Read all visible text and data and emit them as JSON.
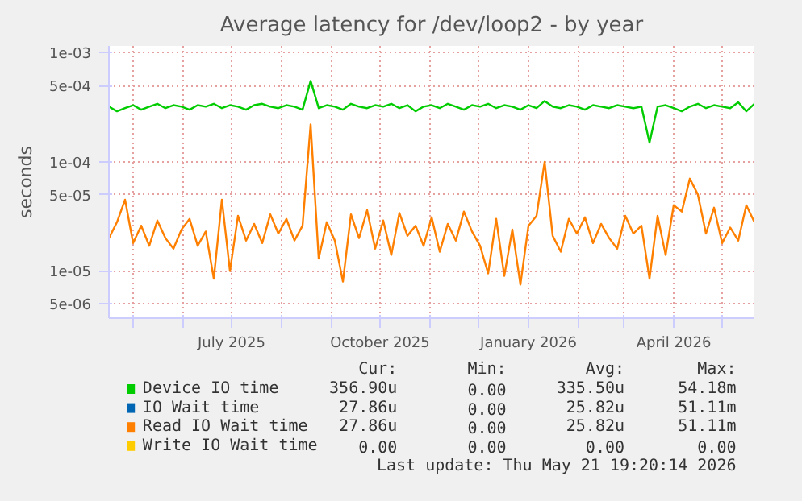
{
  "chart_data": {
    "type": "line",
    "title": "Average latency for /dev/loop2 - by year",
    "ylabel": "seconds",
    "log": true,
    "grid": true,
    "legend": "bottom",
    "ylim": [
      3.7e-06,
      0.00115
    ],
    "yticks": [
      {
        "value": 0.001,
        "label": "1e-03"
      },
      {
        "value": 0.0005,
        "label": "5e-04"
      },
      {
        "value": 0.0001,
        "label": "1e-04"
      },
      {
        "value": 5e-05,
        "label": "5e-05"
      },
      {
        "value": 1e-05,
        "label": "1e-05"
      },
      {
        "value": 5e-06,
        "label": "5e-06"
      }
    ],
    "xlim": [
      "2025-04-16",
      "2026-05-21"
    ],
    "xticks": [
      {
        "value": "2025-05-01",
        "label": null
      },
      {
        "value": "2025-06-01",
        "label": null
      },
      {
        "value": "2025-07-01",
        "label": "July 2025"
      },
      {
        "value": "2025-08-01",
        "label": null
      },
      {
        "value": "2025-09-01",
        "label": null
      },
      {
        "value": "2025-10-01",
        "label": "October 2025"
      },
      {
        "value": "2025-11-01",
        "label": null
      },
      {
        "value": "2025-12-01",
        "label": null
      },
      {
        "value": "2026-01-01",
        "label": "January 2026"
      },
      {
        "value": "2026-02-01",
        "label": null
      },
      {
        "value": "2026-03-01",
        "label": null
      },
      {
        "value": "2026-04-01",
        "label": "April 2026"
      },
      {
        "value": "2026-05-01",
        "label": null
      }
    ],
    "x": [
      "2025-04-16",
      "2025-04-21",
      "2025-04-26",
      "2025-05-01",
      "2025-05-06",
      "2025-05-11",
      "2025-05-16",
      "2025-05-21",
      "2025-05-26",
      "2025-05-31",
      "2025-06-05",
      "2025-06-10",
      "2025-06-15",
      "2025-06-20",
      "2025-06-25",
      "2025-06-30",
      "2025-07-05",
      "2025-07-10",
      "2025-07-15",
      "2025-07-20",
      "2025-07-25",
      "2025-07-30",
      "2025-08-04",
      "2025-08-09",
      "2025-08-14",
      "2025-08-19",
      "2025-08-24",
      "2025-08-29",
      "2025-09-03",
      "2025-09-08",
      "2025-09-13",
      "2025-09-18",
      "2025-09-23",
      "2025-09-28",
      "2025-10-03",
      "2025-10-08",
      "2025-10-13",
      "2025-10-18",
      "2025-10-23",
      "2025-10-28",
      "2025-11-02",
      "2025-11-07",
      "2025-11-12",
      "2025-11-17",
      "2025-11-22",
      "2025-11-27",
      "2025-12-02",
      "2025-12-07",
      "2025-12-12",
      "2025-12-17",
      "2025-12-22",
      "2025-12-27",
      "2026-01-01",
      "2026-01-06",
      "2026-01-11",
      "2026-01-16",
      "2026-01-21",
      "2026-01-26",
      "2026-01-31",
      "2026-02-05",
      "2026-02-10",
      "2026-02-15",
      "2026-02-20",
      "2026-02-25",
      "2026-03-02",
      "2026-03-07",
      "2026-03-12",
      "2026-03-17",
      "2026-03-22",
      "2026-03-27",
      "2026-04-01",
      "2026-04-06",
      "2026-04-11",
      "2026-04-16",
      "2026-04-21",
      "2026-04-26",
      "2026-05-01",
      "2026-05-06",
      "2026-05-11",
      "2026-05-16",
      "2026-05-21"
    ],
    "series": [
      {
        "name": "Device IO time",
        "color": "#00cc00",
        "values": [
          0.00032,
          0.00029,
          0.00031,
          0.00033,
          0.0003,
          0.00032,
          0.00034,
          0.00031,
          0.00033,
          0.00032,
          0.0003,
          0.00033,
          0.00032,
          0.00034,
          0.00031,
          0.00033,
          0.00032,
          0.0003,
          0.00033,
          0.00034,
          0.00032,
          0.00031,
          0.00033,
          0.00032,
          0.0003,
          0.00055,
          0.00031,
          0.00033,
          0.00032,
          0.0003,
          0.00034,
          0.00032,
          0.00031,
          0.00033,
          0.00032,
          0.00034,
          0.00031,
          0.00033,
          0.00029,
          0.00032,
          0.00033,
          0.00031,
          0.00034,
          0.00032,
          0.0003,
          0.00033,
          0.00032,
          0.00034,
          0.00031,
          0.00033,
          0.00032,
          0.0003,
          0.00033,
          0.00031,
          0.00036,
          0.00032,
          0.00031,
          0.00033,
          0.00032,
          0.0003,
          0.00033,
          0.00032,
          0.00031,
          0.00033,
          0.00032,
          0.00031,
          0.00032,
          0.00015,
          0.00032,
          0.00033,
          0.00031,
          0.00029,
          0.00032,
          0.00034,
          0.00031,
          0.00033,
          0.00032,
          0.00031,
          0.00035,
          0.00029,
          0.00034
        ]
      },
      {
        "name": "IO Wait time",
        "color": "#0066b3",
        "values": [
          null,
          null,
          null,
          null,
          null,
          null,
          null,
          null,
          null,
          null,
          null,
          null,
          null,
          null,
          null,
          null,
          null,
          null,
          null,
          null,
          null,
          null,
          null,
          null,
          null,
          null,
          null,
          null,
          null,
          null,
          null,
          null,
          null,
          null,
          null,
          null,
          null,
          null,
          null,
          null,
          null,
          null,
          null,
          null,
          null,
          null,
          null,
          null,
          null,
          null,
          null,
          null,
          null,
          null,
          null,
          null,
          null,
          null,
          null,
          null,
          null,
          null,
          null,
          null,
          null,
          null,
          null,
          null,
          null,
          null,
          null,
          null,
          null,
          null,
          null,
          null,
          null,
          null,
          null,
          null,
          null
        ]
      },
      {
        "name": "Read IO Wait time",
        "color": "#ff8000",
        "values": [
          2e-05,
          2.8e-05,
          4.5e-05,
          1.8e-05,
          2.6e-05,
          1.7e-05,
          2.9e-05,
          2e-05,
          1.6e-05,
          2.4e-05,
          3e-05,
          1.7e-05,
          2.3e-05,
          8.5e-06,
          4.5e-05,
          1e-05,
          3.2e-05,
          1.9e-05,
          2.7e-05,
          1.8e-05,
          3.3e-05,
          2.2e-05,
          3e-05,
          1.9e-05,
          2.6e-05,
          0.00022,
          1.3e-05,
          2.8e-05,
          1.9e-05,
          8e-06,
          3.3e-05,
          2e-05,
          3.6e-05,
          1.6e-05,
          2.9e-05,
          1.4e-05,
          3.4e-05,
          2.1e-05,
          2.6e-05,
          1.7e-05,
          3.1e-05,
          1.5e-05,
          2.7e-05,
          1.9e-05,
          3.5e-05,
          2.3e-05,
          1.7e-05,
          9.5e-06,
          3e-05,
          9e-06,
          2.4e-05,
          7.5e-06,
          2.6e-05,
          3.2e-05,
          0.0001,
          2.1e-05,
          1.5e-05,
          3e-05,
          2.2e-05,
          3.1e-05,
          1.8e-05,
          2.7e-05,
          2e-05,
          1.6e-05,
          3.2e-05,
          2.2e-05,
          2.6e-05,
          8.5e-06,
          3.2e-05,
          1.4e-05,
          4e-05,
          3.5e-05,
          7e-05,
          5e-05,
          2.2e-05,
          3.8e-05,
          1.8e-05,
          2.5e-05,
          1.9e-05,
          4e-05,
          2.8e-05
        ]
      },
      {
        "name": "Write IO Wait time",
        "color": "#ffcc00",
        "values": [
          null,
          null,
          null,
          null,
          null,
          null,
          null,
          null,
          null,
          null,
          null,
          null,
          null,
          null,
          null,
          null,
          null,
          null,
          null,
          null,
          null,
          null,
          null,
          null,
          null,
          null,
          null,
          null,
          null,
          null,
          null,
          null,
          null,
          null,
          null,
          null,
          null,
          null,
          null,
          null,
          null,
          null,
          null,
          null,
          null,
          null,
          null,
          null,
          null,
          null,
          null,
          null,
          null,
          null,
          null,
          null,
          null,
          null,
          null,
          null,
          null,
          null,
          null,
          null,
          null,
          null,
          null,
          null,
          null,
          null,
          null,
          null,
          null,
          null,
          null,
          null,
          null,
          null,
          null,
          null,
          null
        ]
      }
    ],
    "annotations": [
      "Cur:",
      "Min:",
      "Avg:",
      "Max:",
      "356.90u",
      "0.00",
      "335.50u",
      "54.18m",
      "27.86u",
      "0.00",
      "25.82u",
      "51.11m",
      "27.86u",
      "0.00",
      "25.82u",
      "51.11m",
      "0.00",
      "0.00",
      "0.00",
      "0.00",
      "Last update: Thu May 21 19:20:14 2026"
    ]
  }
}
